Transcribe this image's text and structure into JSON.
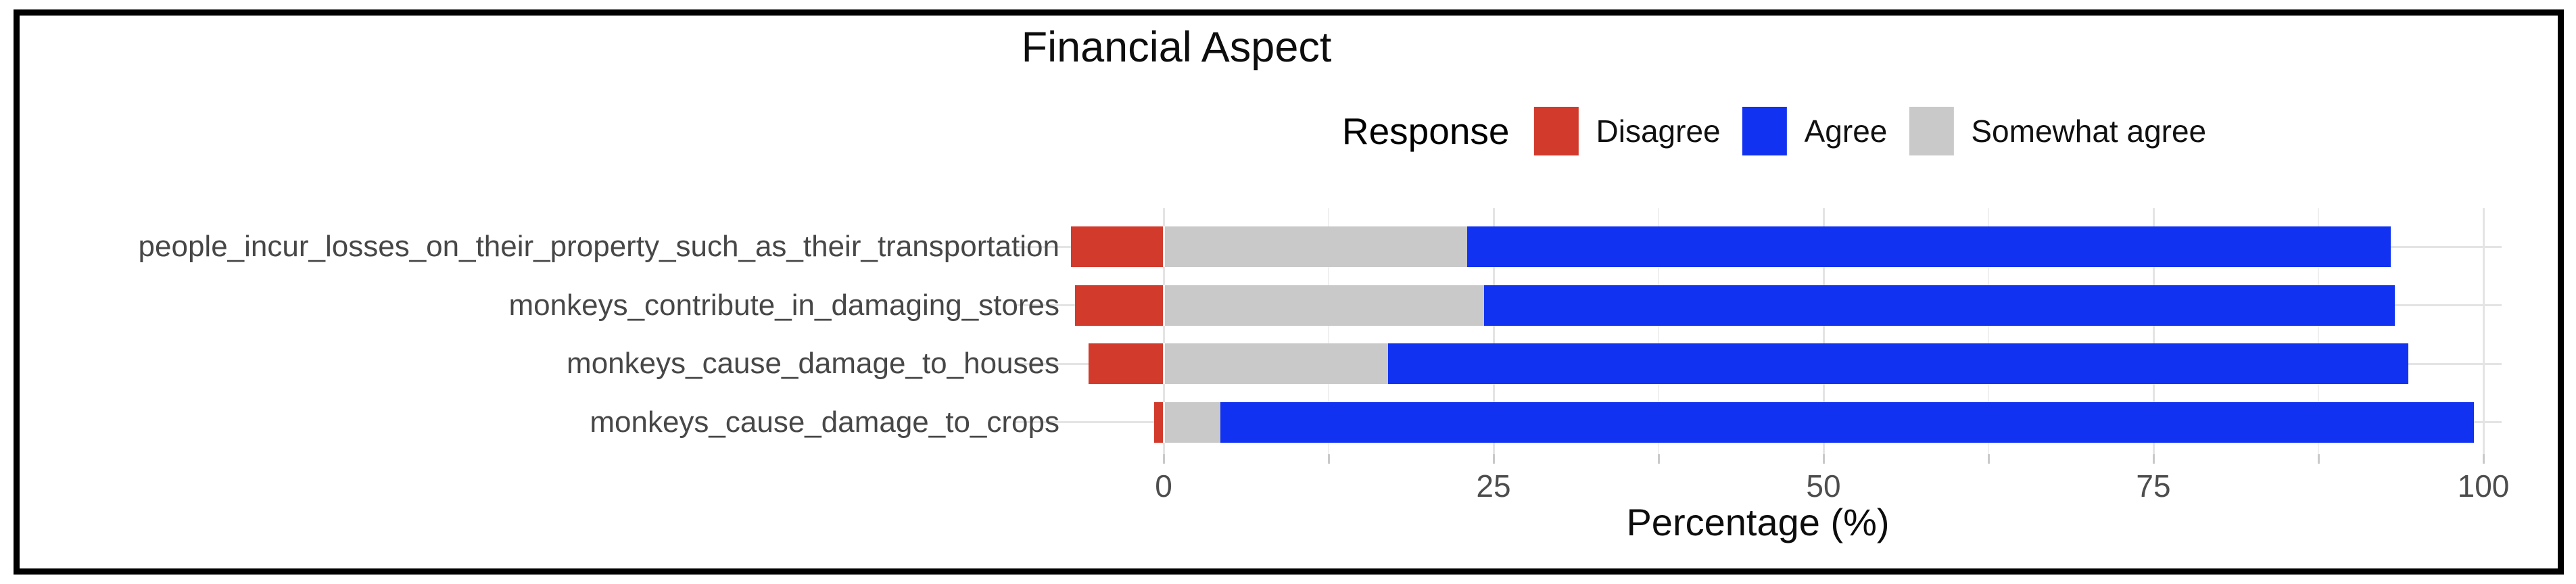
{
  "window": {
    "background": "#ffffff",
    "border_color": "#000000"
  },
  "chart_data": {
    "type": "bar",
    "variant": "horizontal-diverging-stacked",
    "title": "Financial Aspect",
    "xlabel": "Percentage (%)",
    "ylabel": "",
    "x_ticks": [
      0,
      25,
      50,
      75,
      100
    ],
    "x_minor_ticks": [
      12.5,
      37.5,
      62.5,
      87.5
    ],
    "xlim": [
      -11.3,
      101.4
    ],
    "grid": true,
    "legend": {
      "title": "Response",
      "position": "top",
      "entries": [
        {
          "label": "Disagree",
          "color": "#d23a2c"
        },
        {
          "label": "Agree",
          "color": "#1132f0"
        },
        {
          "label": "Somewhat agree",
          "color": "#c9c9c9"
        }
      ]
    },
    "categories": [
      "people_incur_losses_on_their_property_such_as_their_transportation",
      "monkeys_contribute_in_damaging_stores",
      "monkeys_cause_damage_to_houses",
      "monkeys_cause_damage_to_crops"
    ],
    "series": [
      {
        "name": "Disagree",
        "color": "#d23a2c",
        "side": "negative",
        "stack_order": 0,
        "values": [
          7.0,
          6.7,
          5.7,
          0.7
        ]
      },
      {
        "name": "Somewhat agree",
        "color": "#c9c9c9",
        "side": "positive",
        "stack_order": 1,
        "values": [
          23.0,
          24.3,
          17.0,
          4.3
        ]
      },
      {
        "name": "Agree",
        "color": "#1132f0",
        "side": "positive",
        "stack_order": 2,
        "values": [
          70.0,
          69.0,
          77.3,
          95.0
        ]
      }
    ]
  }
}
